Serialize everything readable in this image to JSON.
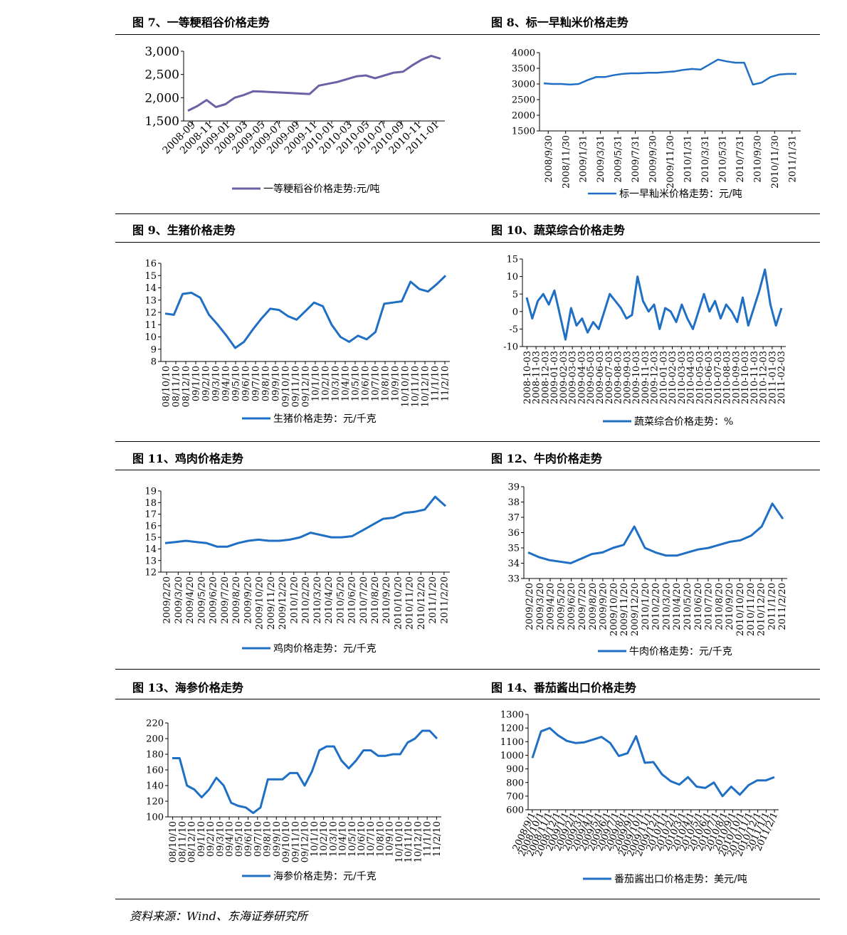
{
  "source": "资料来源：Wind、东海证券研究所",
  "panels": [
    {
      "id": "p7",
      "title": "图 7、一等粳稻谷价格走势",
      "chart_data": {
        "type": "line",
        "color": "#6B62A6",
        "ylim": [
          1500,
          3000
        ],
        "yticks": [
          1500,
          2000,
          2500,
          3000
        ],
        "ytick_labels": [
          "1,500",
          "2,000",
          "2,500",
          "3,000"
        ],
        "xticks": [
          "2008-09",
          "2008-11",
          "2009-01",
          "2009-03",
          "2009-05",
          "2009-07",
          "2009-09",
          "2009-11",
          "2010-01",
          "2010-03",
          "2010-05",
          "2010-07",
          "2010-09",
          "2010-11",
          "2011-01"
        ],
        "series": [
          {
            "name": "一等粳稻谷价格走势:元/吨",
            "values": [
              1720,
              1820,
              1950,
              1800,
              1860,
              2000,
              2060,
              2140,
              2130,
              2120,
              2110,
              2100,
              2090,
              2080,
              2260,
              2300,
              2340,
              2400,
              2460,
              2480,
              2420,
              2480,
              2540,
              2560,
              2700,
              2820,
              2900,
              2840
            ]
          }
        ],
        "legend": "bottom"
      }
    },
    {
      "id": "p8",
      "title": "图 8、标一早籼米价格走势",
      "chart_data": {
        "type": "line",
        "color": "#1F6FC5",
        "ylim": [
          1500,
          4000
        ],
        "yticks": [
          1500,
          2000,
          2500,
          3000,
          3500,
          4000
        ],
        "ytick_labels": [
          "1500",
          "2000",
          "2500",
          "3000",
          "3500",
          "4000"
        ],
        "xticks": [
          "2008/9/30",
          "2008/11/30",
          "2009/1/31",
          "2009/3/31",
          "2009/5/31",
          "2009/7/31",
          "2009/9/30",
          "2009/11/30",
          "2010/1/31",
          "2010/3/31",
          "2010/5/31",
          "2010/7/31",
          "2010/9/30",
          "2010/11/30",
          "2011/1/31"
        ],
        "series": [
          {
            "name": "标一早籼米价格走势：元/吨",
            "values": [
              3020,
              3000,
              3000,
              2980,
              3000,
              3120,
              3220,
              3220,
              3280,
              3320,
              3340,
              3340,
              3360,
              3360,
              3380,
              3400,
              3450,
              3480,
              3460,
              3620,
              3780,
              3720,
              3680,
              3680,
              2980,
              3040,
              3220,
              3300,
              3320,
              3320
            ]
          }
        ],
        "legend": "bottom"
      }
    },
    {
      "id": "p9",
      "title": "图 9、生猪价格走势",
      "chart_data": {
        "type": "line",
        "color": "#1F6FC5",
        "ylim": [
          8,
          16
        ],
        "yticks": [
          8,
          9,
          10,
          11,
          12,
          13,
          14,
          15,
          16
        ],
        "ytick_labels": [
          "8",
          "9",
          "10",
          "11",
          "12",
          "13",
          "14",
          "15",
          "16"
        ],
        "xticks": [
          "08/10/10",
          "08/11/10",
          "08/12/10",
          "09/1/10",
          "09/2/10",
          "09/3/10",
          "09/4/10",
          "09/5/10",
          "09/6/10",
          "09/7/10",
          "09/8/10",
          "09/9/10",
          "09/10/10",
          "09/11/10",
          "09/12/10",
          "10/1/10",
          "10/2/10",
          "10/3/10",
          "10/4/10",
          "10/5/10",
          "10/6/10",
          "10/7/10",
          "10/8/10",
          "10/9/10",
          "10/10/10",
          "10/11/10",
          "10/12/10",
          "11/1/10",
          "11/2/10"
        ],
        "series": [
          {
            "name": "生猪价格走势：元/千克",
            "values": [
              11.9,
              11.8,
              13.5,
              13.6,
              13.2,
              11.8,
              11.0,
              10.1,
              9.1,
              9.6,
              10.6,
              11.5,
              12.3,
              12.2,
              11.7,
              11.4,
              12.1,
              12.8,
              12.5,
              11.0,
              10.0,
              9.6,
              10.1,
              9.8,
              10.4,
              12.7,
              12.8,
              12.9,
              14.5,
              13.9,
              13.7,
              14.3,
              15.0
            ]
          }
        ],
        "legend": "bottom"
      }
    },
    {
      "id": "p10",
      "title": "图 10、蔬菜综合价格走势",
      "chart_data": {
        "type": "line",
        "color": "#1F6FC5",
        "ylim": [
          -10,
          15
        ],
        "yticks": [
          -10,
          -5,
          0,
          5,
          10,
          15
        ],
        "ytick_labels": [
          "-10",
          "-5",
          "0",
          "5",
          "10",
          "15"
        ],
        "xticks": [
          "2008-10-03",
          "2008-11-03",
          "2008-12-03",
          "2009-01-03",
          "2009-02-03",
          "2009-03-03",
          "2009-04-03",
          "2009-05-03",
          "2009-06-03",
          "2009-07-03",
          "2009-08-03",
          "2009-09-03",
          "2009-10-03",
          "2009-11-03",
          "2009-12-03",
          "2010-01-03",
          "2010-02-03",
          "2010-03-03",
          "2010-04-03",
          "2010-05-03",
          "2010-06-03",
          "2010-07-03",
          "2010-08-03",
          "2010-09-03",
          "2010-10-03",
          "2010-11-03",
          "2010-12-03",
          "2011-01-03",
          "2011-02-03"
        ],
        "series": [
          {
            "name": "蔬菜综合价格走势：%",
            "values": [
              4,
              -2,
              3,
              5,
              2,
              6,
              -1,
              -8,
              1,
              -4,
              -2,
              -6,
              -3,
              -5,
              0,
              5,
              3,
              1,
              -2,
              -1,
              10,
              3,
              0,
              2,
              -5,
              1,
              0,
              -3,
              2,
              -2,
              -5,
              0,
              5,
              0,
              3,
              -2,
              2,
              0,
              -3,
              4,
              -4,
              1,
              6,
              12,
              2,
              -4,
              1
            ]
          }
        ],
        "legend": "bottom"
      }
    },
    {
      "id": "p11",
      "title": "图 11、鸡肉价格走势",
      "chart_data": {
        "type": "line",
        "color": "#1F6FC5",
        "ylim": [
          12,
          19
        ],
        "yticks": [
          12,
          13,
          14,
          15,
          16,
          17,
          18,
          19
        ],
        "ytick_labels": [
          "12",
          "13",
          "14",
          "15",
          "16",
          "17",
          "18",
          "19"
        ],
        "xticks": [
          "2009/2/20",
          "2009/3/20",
          "2009/4/20",
          "2009/5/20",
          "2009/6/20",
          "2009/7/20",
          "2009/8/20",
          "2009/9/20",
          "2009/10/20",
          "2009/11/20",
          "2009/12/20",
          "2010/1/20",
          "2010/2/20",
          "2010/3/20",
          "2010/4/20",
          "2010/5/20",
          "2010/6/20",
          "2010/7/20",
          "2010/8/20",
          "2010/9/20",
          "2010/10/20",
          "2010/11/20",
          "2010/12/20",
          "2011/1/20",
          "2011/2/20"
        ],
        "series": [
          {
            "name": "鸡肉价格走势：元/千克",
            "values": [
              14.5,
              14.6,
              14.7,
              14.6,
              14.5,
              14.2,
              14.2,
              14.5,
              14.7,
              14.8,
              14.7,
              14.7,
              14.8,
              15.0,
              15.4,
              15.2,
              15.0,
              15.0,
              15.1,
              15.6,
              16.1,
              16.6,
              16.7,
              17.1,
              17.2,
              17.4,
              18.5,
              17.7
            ]
          }
        ],
        "legend": "bottom"
      }
    },
    {
      "id": "p12",
      "title": "图 12、牛肉价格走势",
      "chart_data": {
        "type": "line",
        "color": "#1F6FC5",
        "ylim": [
          33,
          39
        ],
        "yticks": [
          33,
          34,
          35,
          36,
          37,
          38,
          39
        ],
        "ytick_labels": [
          "33",
          "34",
          "35",
          "36",
          "37",
          "38",
          "39"
        ],
        "xticks": [
          "2009/2/20",
          "2009/3/20",
          "2009/4/20",
          "2009/5/20",
          "2009/6/20",
          "2009/7/20",
          "2009/8/20",
          "2009/9/20",
          "2009/10/20",
          "2009/11/20",
          "2009/12/20",
          "2010/1/20",
          "2010/2/20",
          "2010/3/20",
          "2010/4/20",
          "2010/5/20",
          "2010/6/20",
          "2010/7/20",
          "2010/8/20",
          "2010/9/20",
          "2010/10/20",
          "2010/11/20",
          "2010/12/20",
          "2011/1/20",
          "2011/2/20"
        ],
        "series": [
          {
            "name": "牛肉价格走势：元/千克",
            "values": [
              34.7,
              34.4,
              34.2,
              34.1,
              34.0,
              34.3,
              34.6,
              34.7,
              35.0,
              35.2,
              36.4,
              35.0,
              34.7,
              34.5,
              34.5,
              34.7,
              34.9,
              35.0,
              35.2,
              35.4,
              35.5,
              35.8,
              36.4,
              37.9,
              36.9
            ]
          }
        ],
        "legend": "bottom"
      }
    },
    {
      "id": "p13",
      "title": "图 13、海参价格走势",
      "chart_data": {
        "type": "line",
        "color": "#1F6FC5",
        "ylim": [
          100,
          220
        ],
        "yticks": [
          100,
          120,
          140,
          160,
          180,
          200,
          220
        ],
        "ytick_labels": [
          "100",
          "120",
          "140",
          "160",
          "180",
          "200",
          "220"
        ],
        "xticks": [
          "08/10/10",
          "08/11/10",
          "08/12/10",
          "09/1/10",
          "09/2/10",
          "09/3/10",
          "09/4/10",
          "09/5/10",
          "09/6/10",
          "09/7/10",
          "09/8/10",
          "09/9/10",
          "09/10/10",
          "09/11/10",
          "09/12/10",
          "10/1/10",
          "10/2/10",
          "10/3/10",
          "10/4/10",
          "10/5/10",
          "10/6/10",
          "10/7/10",
          "10/8/10",
          "10/9/10",
          "10/10/10",
          "10/11/10",
          "10/12/10",
          "11/1/10",
          "11/2/10"
        ],
        "series": [
          {
            "name": "海参价格走势：元/千克",
            "values": [
              175,
              175,
              140,
              135,
              125,
              135,
              150,
              140,
              118,
              114,
              112,
              105,
              112,
              148,
              148,
              148,
              156,
              156,
              140,
              158,
              185,
              190,
              190,
              172,
              162,
              172,
              185,
              185,
              178,
              178,
              180,
              180,
              195,
              200,
              210,
              210,
              200
            ]
          }
        ],
        "legend": "bottom"
      }
    },
    {
      "id": "p14",
      "title": "图 14、番茄酱出口价格走势",
      "chart_data": {
        "type": "line",
        "color": "#1F6FC5",
        "ylim": [
          600,
          1300
        ],
        "yticks": [
          600,
          700,
          800,
          900,
          1000,
          1100,
          1200,
          1300
        ],
        "ytick_labels": [
          "600",
          "700",
          "800",
          "900",
          "1000",
          "1100",
          "1200",
          "1300"
        ],
        "xticks": [
          "2008/9/1",
          "2008/10/1",
          "2008/11/1",
          "2008/12/1",
          "2009/1/1",
          "2009/2/1",
          "2009/3/1",
          "2009/4/1",
          "2009/5/1",
          "2009/6/1",
          "2009/7/1",
          "2009/8/1",
          "2009/9/1",
          "2009/10/1",
          "2009/11/1",
          "2009/12/1",
          "2010/1/1",
          "2010/2/1",
          "2010/3/1",
          "2010/4/1",
          "2010/5/1",
          "2010/6/1",
          "2010/7/1",
          "2010/8/1",
          "2010/9/1",
          "2010/10/1",
          "2010/11/1",
          "2010/12/1",
          "2011/1/1",
          "2011/2/1"
        ],
        "series": [
          {
            "name": "番茄酱出口价格走势：美元/吨",
            "values": [
              980,
              1175,
              1200,
              1145,
              1105,
              1090,
              1095,
              1115,
              1135,
              1090,
              995,
              1015,
              1140,
              945,
              950,
              860,
              810,
              785,
              840,
              770,
              760,
              800,
              700,
              770,
              710,
              780,
              815,
              815,
              840
            ]
          }
        ],
        "legend": "bottom"
      }
    }
  ]
}
